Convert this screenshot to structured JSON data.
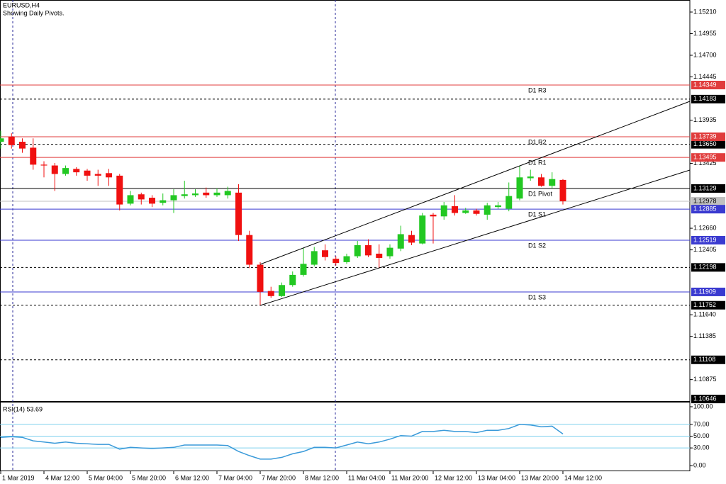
{
  "chart_data": [
    {
      "type": "candlestick",
      "title": "EURUSD,H4",
      "subtitle": "Showing Daily Pivots.",
      "x": [
        0,
        1,
        2,
        3,
        4,
        5,
        6,
        7,
        8,
        9,
        10,
        11,
        12,
        13,
        14,
        15,
        16,
        17,
        18,
        19,
        20,
        21,
        22,
        23,
        24,
        25,
        26,
        27,
        28,
        29,
        30,
        31,
        32,
        33,
        34,
        35,
        36,
        37,
        38,
        39,
        40,
        41,
        42,
        43,
        44,
        45,
        46,
        47,
        48,
        49,
        50,
        51,
        52
      ],
      "open": [
        1.1368,
        1.1374,
        1.1368,
        1.1361,
        1.1341,
        1.134,
        1.133,
        1.1336,
        1.1334,
        1.133,
        1.1331,
        1.1328,
        1.1295,
        1.1306,
        1.1302,
        1.1296,
        1.1299,
        1.1304,
        1.1305,
        1.1308,
        1.1305,
        1.1305,
        1.1308,
        1.1258,
        1.1223,
        1.1192,
        1.1186,
        1.1199,
        1.1211,
        1.1223,
        1.124,
        1.123,
        1.1226,
        1.1233,
        1.1246,
        1.1236,
        1.1233,
        1.1242,
        1.1258,
        1.1248,
        1.1282,
        1.128,
        1.1292,
        1.1284,
        1.1287,
        1.1282,
        1.1291,
        1.1289,
        1.1301,
        1.1325,
        1.1326,
        1.1316,
        1.1323
      ],
      "high": [
        1.1381,
        1.1378,
        1.1372,
        1.1372,
        1.1345,
        1.1343,
        1.134,
        1.1338,
        1.1336,
        1.1335,
        1.1336,
        1.133,
        1.131,
        1.1308,
        1.1305,
        1.1307,
        1.1312,
        1.1322,
        1.1312,
        1.1314,
        1.1313,
        1.1315,
        1.1318,
        1.1263,
        1.1226,
        1.1197,
        1.1202,
        1.1215,
        1.1243,
        1.1244,
        1.1247,
        1.1233,
        1.1236,
        1.1251,
        1.1253,
        1.1247,
        1.1247,
        1.1269,
        1.1263,
        1.1284,
        1.1284,
        1.1297,
        1.1305,
        1.129,
        1.1289,
        1.1296,
        1.1297,
        1.132,
        1.134,
        1.1335,
        1.133,
        1.1332,
        1.1324
      ],
      "low": [
        1.136,
        1.136,
        1.1355,
        1.1335,
        1.1326,
        1.131,
        1.1328,
        1.1328,
        1.1322,
        1.1316,
        1.1316,
        1.1287,
        1.1293,
        1.1294,
        1.1291,
        1.1293,
        1.1284,
        1.1301,
        1.1303,
        1.1302,
        1.1303,
        1.1301,
        1.1251,
        1.1219,
        1.1175,
        1.1184,
        1.1185,
        1.1197,
        1.1209,
        1.1221,
        1.1228,
        1.1222,
        1.1224,
        1.1231,
        1.1232,
        1.1219,
        1.123,
        1.1239,
        1.1246,
        1.1247,
        1.1248,
        1.1276,
        1.1281,
        1.1283,
        1.1281,
        1.1276,
        1.1289,
        1.1286,
        1.1299,
        1.1322,
        1.1315,
        1.1313,
        1.1294
      ],
      "close": [
        1.1372,
        1.1364,
        1.136,
        1.1341,
        1.134,
        1.133,
        1.1337,
        1.1332,
        1.1328,
        1.1328,
        1.1326,
        1.1294,
        1.1305,
        1.13,
        1.1295,
        1.1299,
        1.1305,
        1.1306,
        1.1307,
        1.1305,
        1.1308,
        1.131,
        1.1258,
        1.1223,
        1.1191,
        1.1186,
        1.1199,
        1.1211,
        1.1224,
        1.1239,
        1.1232,
        1.1225,
        1.1233,
        1.1246,
        1.1234,
        1.1231,
        1.1243,
        1.1259,
        1.1249,
        1.1281,
        1.128,
        1.1293,
        1.1284,
        1.1287,
        1.1283,
        1.1293,
        1.1293,
        1.1304,
        1.1326,
        1.1327,
        1.1316,
        1.1324,
        1.12978
      ],
      "up_color": "#22c822",
      "down_color": "#f01010",
      "doji_color": "#888888",
      "xlim": [
        -0.066,
        63.74
      ],
      "ylim": [
        1.10613,
        1.15352
      ],
      "yticks": [
        {
          "value": 1.1521,
          "label": "1.15210"
        },
        {
          "value": 1.14955,
          "label": "1.14955"
        },
        {
          "value": 1.147,
          "label": "1.14700"
        },
        {
          "value": 1.14445,
          "label": "1.14445"
        },
        {
          "value": 1.13935,
          "label": "1.13935"
        },
        {
          "value": 1.13425,
          "label": "1.13425"
        },
        {
          "value": 1.1266,
          "label": "1.12660"
        },
        {
          "value": 1.12405,
          "label": "1.12405"
        },
        {
          "value": 1.1164,
          "label": "1.11640"
        },
        {
          "value": 1.11385,
          "label": "1.11385"
        },
        {
          "value": 1.10875,
          "label": "1.10875"
        }
      ],
      "xticks": [
        {
          "value": 0,
          "label": "1 Mar 2019"
        },
        {
          "value": 4,
          "label": "4 Mar 12:00"
        },
        {
          "value": 8,
          "label": "5 Mar 04:00"
        },
        {
          "value": 12,
          "label": "5 Mar 20:00"
        },
        {
          "value": 16,
          "label": "6 Mar 12:00"
        },
        {
          "value": 20,
          "label": "7 Mar 04:00"
        },
        {
          "value": 24,
          "label": "7 Mar 20:00"
        },
        {
          "value": 28,
          "label": "8 Mar 12:00"
        },
        {
          "value": 32,
          "label": "11 Mar 04:00"
        },
        {
          "value": 36,
          "label": "11 Mar 20:00"
        },
        {
          "value": 40,
          "label": "12 Mar 12:00"
        },
        {
          "value": 44,
          "label": "13 Mar 04:00"
        },
        {
          "value": 48,
          "label": "13 Mar 20:00"
        },
        {
          "value": 52,
          "label": "14 Mar 12:00"
        }
      ],
      "levels": [
        {
          "value": 1.14183,
          "label": "1.14183",
          "color": "#000000",
          "style": "dotted"
        },
        {
          "value": 1.1365,
          "label": "1.13650",
          "color": "#000000",
          "style": "dotted"
        },
        {
          "value": 1.12198,
          "label": "1.12198",
          "color": "#000000",
          "style": "dotted"
        },
        {
          "value": 1.11752,
          "label": "1.11752",
          "color": "#000000",
          "style": "dotted"
        },
        {
          "value": 1.11108,
          "label": "1.11108",
          "color": "#000000",
          "style": "dotted"
        },
        {
          "value": 1.10646,
          "label": "1.10646",
          "color": "#000000",
          "style": "none"
        },
        {
          "value": 1.12978,
          "label": "1.12978",
          "color": "#c0c0c0",
          "style": "solid"
        },
        {
          "value": 1.14349,
          "label": "1.14349",
          "name": "D1 R3",
          "color": "#e03c3c",
          "style": "solid"
        },
        {
          "value": 1.13739,
          "label": "1.13739",
          "name": "D1 R2",
          "color": "#e03c3c",
          "style": "solid"
        },
        {
          "value": 1.13495,
          "label": "1.13495",
          "name": "D1 R1",
          "color": "#e03c3c",
          "style": "solid"
        },
        {
          "value": 1.13129,
          "label": "1.13129",
          "name": "D1 Pivot",
          "color": "#000000",
          "style": "solid"
        },
        {
          "value": 1.12885,
          "label": "1.12885",
          "name": "D1 S1",
          "color": "#3a3ad0",
          "style": "solid"
        },
        {
          "value": 1.12519,
          "label": "1.12519",
          "name": "D1 S2",
          "color": "#3a3ad0",
          "style": "solid"
        },
        {
          "value": 1.11909,
          "label": "1.11909",
          "name": "D1 S3",
          "color": "#3a3ad0",
          "style": "solid"
        }
      ]
    },
    {
      "type": "line",
      "title": "RSI(14) 53.69",
      "color": "#3a9ad9",
      "level_color": "#7fd0ee",
      "x": [
        0,
        1,
        2,
        3,
        4,
        5,
        6,
        7,
        8,
        9,
        10,
        11,
        12,
        13,
        14,
        15,
        16,
        17,
        18,
        19,
        20,
        21,
        22,
        23,
        24,
        25,
        26,
        27,
        28,
        29,
        30,
        31,
        32,
        33,
        34,
        35,
        36,
        37,
        38,
        39,
        40,
        41,
        42,
        43,
        44,
        45,
        46,
        47,
        48,
        49,
        50,
        51,
        52
      ],
      "values": [
        48,
        49,
        48,
        42,
        40,
        38,
        40,
        38,
        37,
        36,
        36,
        28,
        31,
        30,
        29,
        30,
        31,
        35,
        35,
        35,
        35,
        34,
        24,
        17,
        11,
        11,
        14,
        20,
        24,
        31,
        31,
        30,
        35,
        40,
        37,
        40,
        45,
        51,
        50,
        58,
        58,
        60,
        58,
        58,
        56,
        60,
        60,
        63,
        70,
        69,
        66,
        67,
        53.69
      ],
      "xlim": [
        -0.066,
        63.74
      ],
      "ylim": [
        -9.6,
        108.4
      ],
      "yticks": [
        {
          "value": 100,
          "label": "100.00"
        },
        {
          "value": 70,
          "label": "70.00"
        },
        {
          "value": 50,
          "label": "50.00"
        },
        {
          "value": 30,
          "label": "30.00"
        },
        {
          "value": 0,
          "label": "0.00"
        }
      ],
      "hlines": [
        70,
        50,
        30
      ]
    }
  ]
}
